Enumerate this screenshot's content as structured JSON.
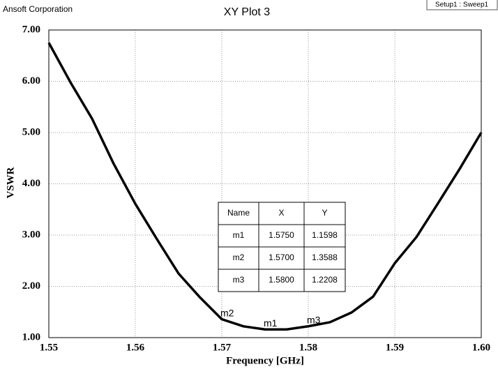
{
  "chart_data": {
    "type": "line",
    "company": "Ansoft Corporation",
    "title": "XY Plot 3",
    "xlabel": "Frequency [GHz]",
    "ylabel": "VSWR",
    "legend": "top-right",
    "grid": true,
    "x": [
      1.55,
      1.5525,
      1.555,
      1.5575,
      1.56,
      1.5625,
      1.565,
      1.5675,
      1.57,
      1.5725,
      1.575,
      1.5775,
      1.58,
      1.5825,
      1.585,
      1.5875,
      1.59,
      1.5925,
      1.595,
      1.5975,
      1.6
    ],
    "series": [
      {
        "name": "Setup1 : Sweep1",
        "color": "#000000",
        "values": [
          6.75,
          5.98,
          5.27,
          4.39,
          3.61,
          2.92,
          2.25,
          1.78,
          1.3588,
          1.22,
          1.1598,
          1.16,
          1.2208,
          1.3,
          1.49,
          1.8,
          2.45,
          2.96,
          3.62,
          4.29,
          5.0
        ]
      }
    ],
    "markers": [
      {
        "name": "m1",
        "x": 1.575,
        "y": 1.1598
      },
      {
        "name": "m2",
        "x": 1.57,
        "y": 1.3588
      },
      {
        "name": "m3",
        "x": 1.58,
        "y": 1.2208
      }
    ],
    "marker_table": {
      "columns": [
        "Name",
        "X",
        "Y"
      ],
      "rows": [
        [
          "m1",
          "1.5750",
          "1.1598"
        ],
        [
          "m2",
          "1.5700",
          "1.3588"
        ],
        [
          "m3",
          "1.5800",
          "1.2208"
        ]
      ]
    },
    "xlim": [
      1.55,
      1.6
    ],
    "xticks": [
      1.55,
      1.56,
      1.57,
      1.58,
      1.59,
      {
        "value": 1.6,
        "label": "1.60"
      }
    ],
    "ylim": [
      1,
      7
    ],
    "yticks": [
      {
        "value": 1,
        "label": "1.00"
      },
      {
        "value": 2,
        "label": "2.00"
      },
      {
        "value": 3,
        "label": "3.00"
      },
      {
        "value": 4,
        "label": "4.00"
      },
      {
        "value": 5,
        "label": "5.00"
      },
      {
        "value": 6,
        "label": "6.00"
      },
      {
        "value": 7,
        "label": "7.00"
      }
    ]
  }
}
